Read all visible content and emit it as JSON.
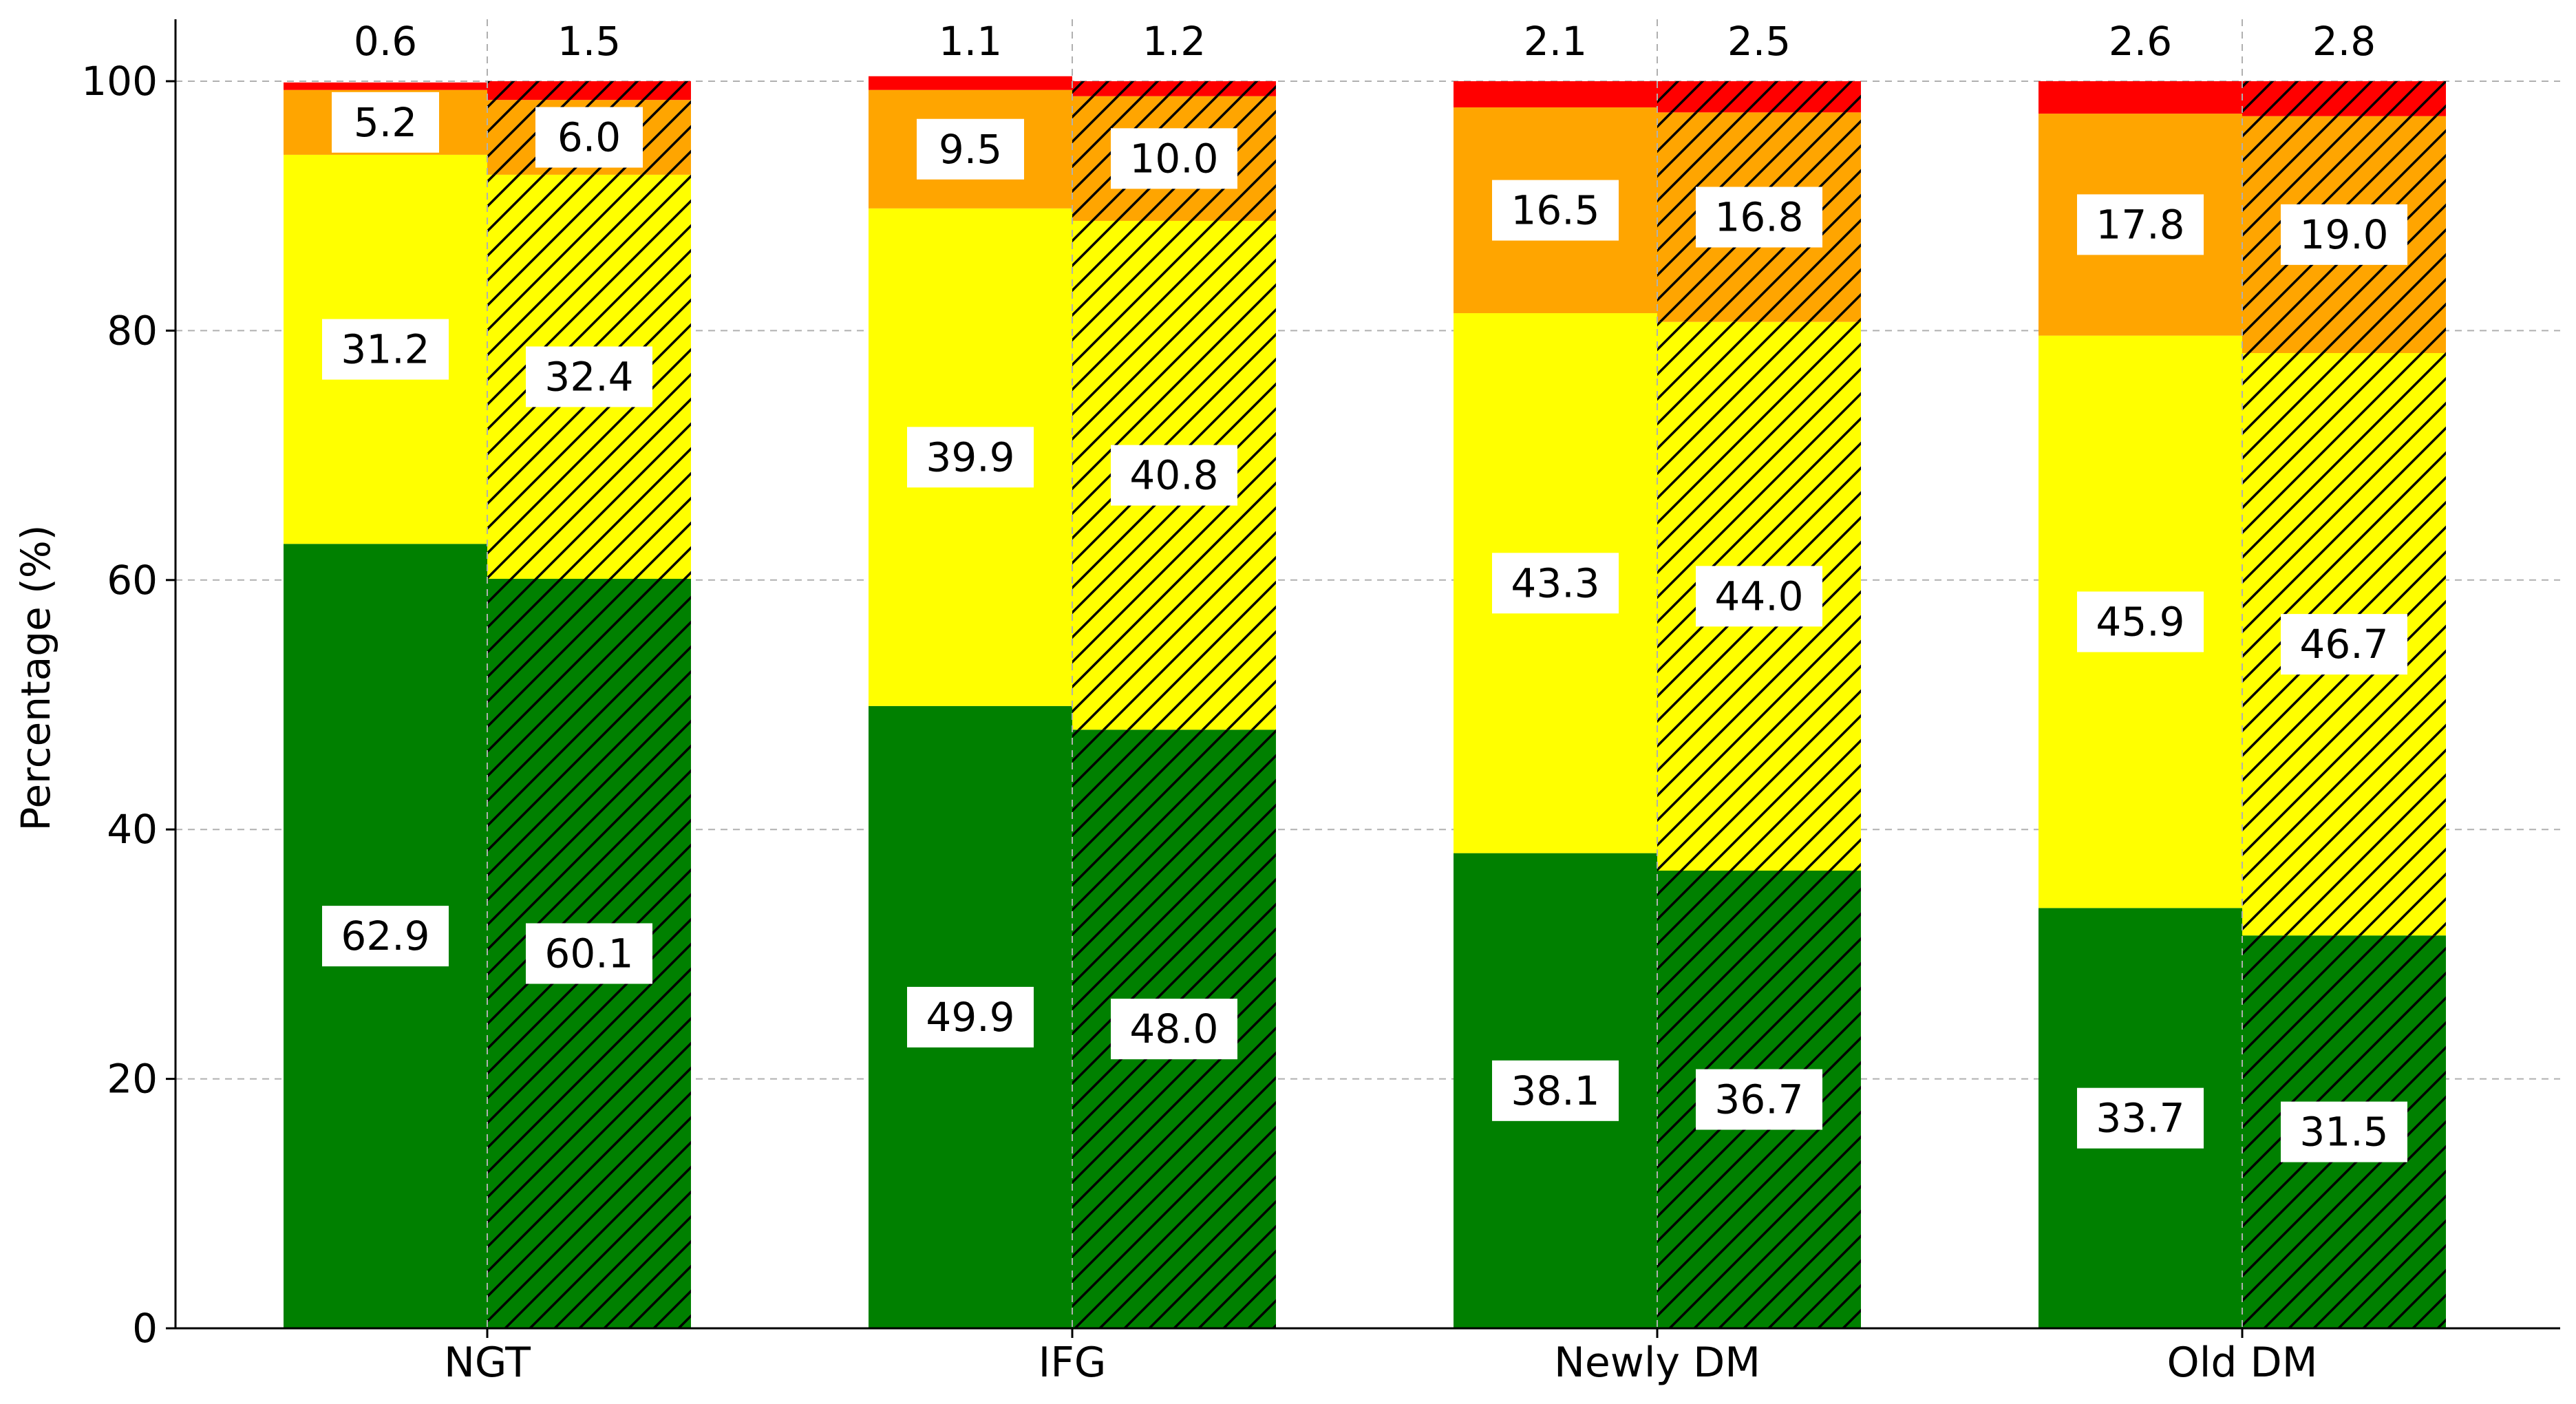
{
  "chart_data": {
    "type": "bar",
    "stacked": true,
    "categories": [
      "NGT",
      "IFG",
      "Newly DM",
      "Old DM"
    ],
    "bars_per_category": [
      {
        "pattern": "solid"
      },
      {
        "pattern": "hatched"
      }
    ],
    "ylabel": "Percentage (%)",
    "xlabel": "",
    "ylim": [
      0,
      100
    ],
    "yticks": [
      0,
      20,
      40,
      60,
      80,
      100
    ],
    "grid": true,
    "series": [
      {
        "color": "#008000",
        "values": [
          [
            62.9,
            60.1
          ],
          [
            49.9,
            48.0
          ],
          [
            38.1,
            36.7
          ],
          [
            33.7,
            31.5
          ]
        ]
      },
      {
        "color": "#ffff00",
        "values": [
          [
            31.2,
            32.4
          ],
          [
            39.9,
            40.8
          ],
          [
            43.3,
            44.0
          ],
          [
            45.9,
            46.7
          ]
        ]
      },
      {
        "color": "#ffa500",
        "values": [
          [
            5.2,
            6.0
          ],
          [
            9.5,
            10.0
          ],
          [
            16.5,
            16.8
          ],
          [
            17.8,
            19.0
          ]
        ]
      },
      {
        "color": "#ff0000",
        "values": [
          [
            0.6,
            1.5
          ],
          [
            1.1,
            1.2
          ],
          [
            2.1,
            2.5
          ],
          [
            2.6,
            2.8
          ]
        ]
      }
    ],
    "labels": {
      "boxed_series": [
        0,
        1,
        2
      ],
      "top_series": 3
    }
  }
}
